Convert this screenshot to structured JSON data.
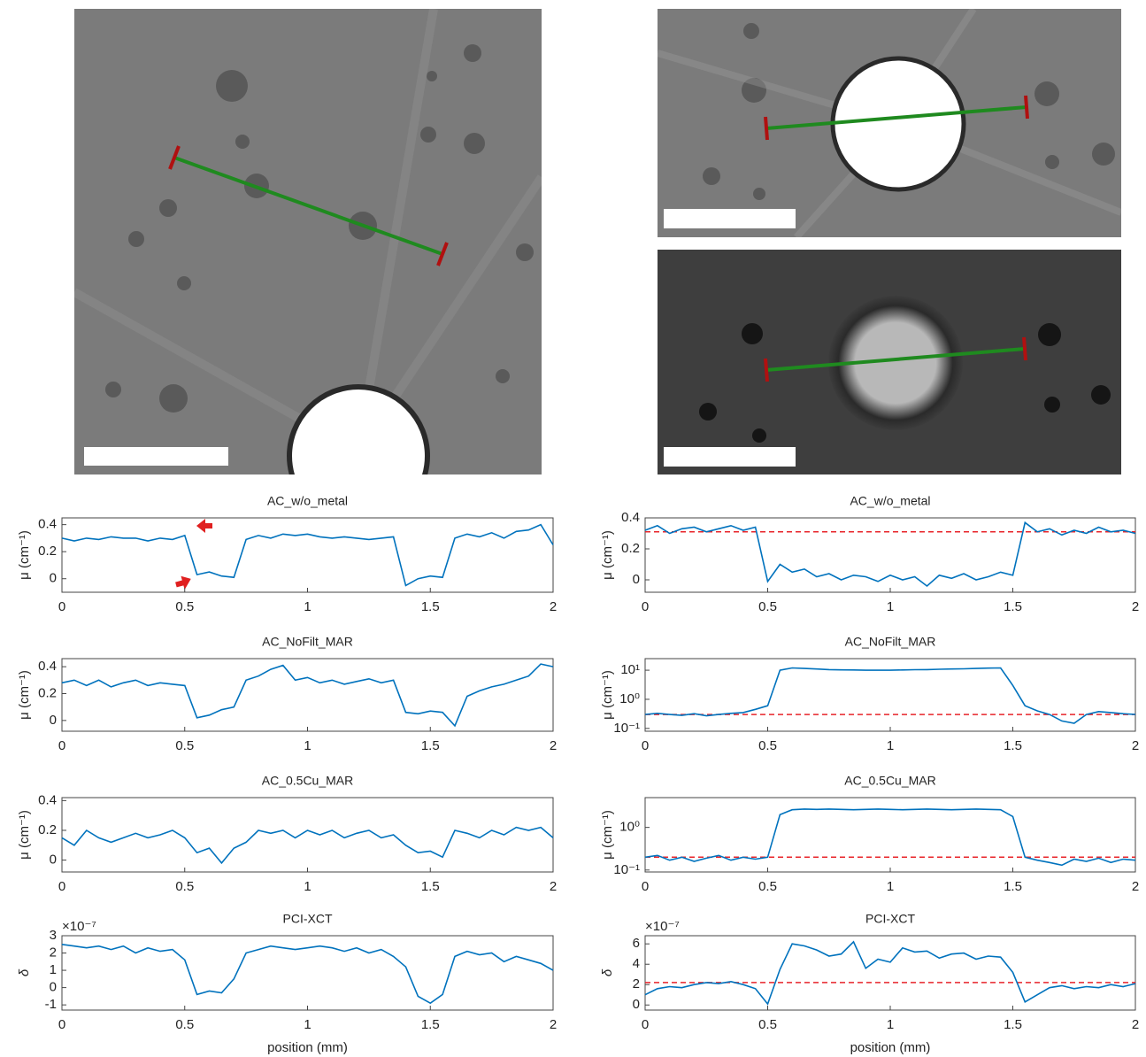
{
  "chart_data": [
    {
      "type": "line",
      "title": "AC_w/o_metal",
      "ylabel": "μ (cm⁻¹)",
      "xlim": [
        0,
        2
      ],
      "xticks": [
        0,
        0.5,
        1,
        1.5,
        2
      ],
      "ylim": [
        -0.1,
        0.45
      ],
      "yticks": [
        0,
        0.2,
        0.4
      ],
      "x": [
        0,
        0.05,
        0.1,
        0.15,
        0.2,
        0.25,
        0.3,
        0.35,
        0.4,
        0.45,
        0.5,
        0.55,
        0.6,
        0.65,
        0.7,
        0.75,
        0.8,
        0.85,
        0.9,
        0.95,
        1,
        1.05,
        1.1,
        1.15,
        1.2,
        1.25,
        1.3,
        1.35,
        1.4,
        1.45,
        1.5,
        1.55,
        1.6,
        1.65,
        1.7,
        1.75,
        1.8,
        1.85,
        1.9,
        1.95,
        2
      ],
      "series": [
        {
          "color": "#0072bd",
          "values": [
            0.3,
            0.28,
            0.3,
            0.29,
            0.31,
            0.3,
            0.3,
            0.28,
            0.3,
            0.29,
            0.32,
            0.03,
            0.05,
            0.02,
            0.01,
            0.29,
            0.32,
            0.3,
            0.33,
            0.32,
            0.33,
            0.31,
            0.3,
            0.31,
            0.3,
            0.29,
            0.3,
            0.31,
            -0.05,
            0.0,
            0.02,
            0.01,
            0.3,
            0.33,
            0.31,
            0.34,
            0.3,
            0.35,
            0.36,
            0.4,
            0.25
          ]
        }
      ]
    },
    {
      "type": "line",
      "title": "AC_w/o_metal",
      "ylabel": "μ (cm⁻¹)",
      "xlim": [
        0,
        2
      ],
      "xticks": [
        0,
        0.5,
        1,
        1.5,
        2
      ],
      "ylim": [
        -0.08,
        0.4
      ],
      "yticks": [
        0,
        0.2,
        0.4
      ],
      "x": [
        0,
        0.05,
        0.1,
        0.15,
        0.2,
        0.25,
        0.3,
        0.35,
        0.4,
        0.45,
        0.5,
        0.55,
        0.6,
        0.65,
        0.7,
        0.75,
        0.8,
        0.85,
        0.9,
        0.95,
        1,
        1.05,
        1.1,
        1.15,
        1.2,
        1.25,
        1.3,
        1.35,
        1.4,
        1.45,
        1.5,
        1.55,
        1.6,
        1.65,
        1.7,
        1.75,
        1.8,
        1.85,
        1.9,
        1.95,
        2
      ],
      "series": [
        {
          "color": "#0072bd",
          "values": [
            0.32,
            0.35,
            0.3,
            0.33,
            0.34,
            0.31,
            0.33,
            0.35,
            0.32,
            0.34,
            -0.01,
            0.1,
            0.05,
            0.07,
            0.02,
            0.04,
            0.0,
            0.03,
            0.02,
            -0.01,
            0.03,
            0.0,
            0.02,
            -0.04,
            0.03,
            0.01,
            0.04,
            0.0,
            0.02,
            0.05,
            0.03,
            0.37,
            0.31,
            0.33,
            0.29,
            0.32,
            0.3,
            0.34,
            0.31,
            0.32,
            0.3
          ]
        }
      ],
      "reference": {
        "value": 0.31,
        "color": "#e8242a"
      }
    },
    {
      "type": "line",
      "title": "AC_NoFilt_MAR",
      "ylabel": "μ (cm⁻¹)",
      "xlim": [
        0,
        2
      ],
      "xticks": [
        0,
        0.5,
        1,
        1.5,
        2
      ],
      "ylim": [
        -0.08,
        0.46
      ],
      "yticks": [
        0,
        0.2,
        0.4
      ],
      "x": [
        0,
        0.05,
        0.1,
        0.15,
        0.2,
        0.25,
        0.3,
        0.35,
        0.4,
        0.45,
        0.5,
        0.55,
        0.6,
        0.65,
        0.7,
        0.75,
        0.8,
        0.85,
        0.9,
        0.95,
        1,
        1.05,
        1.1,
        1.15,
        1.2,
        1.25,
        1.3,
        1.35,
        1.4,
        1.45,
        1.5,
        1.55,
        1.6,
        1.65,
        1.7,
        1.75,
        1.8,
        1.85,
        1.9,
        1.95,
        2
      ],
      "series": [
        {
          "color": "#0072bd",
          "values": [
            0.28,
            0.3,
            0.26,
            0.3,
            0.25,
            0.28,
            0.3,
            0.26,
            0.28,
            0.27,
            0.26,
            0.02,
            0.04,
            0.08,
            0.1,
            0.3,
            0.33,
            0.38,
            0.41,
            0.3,
            0.32,
            0.28,
            0.3,
            0.27,
            0.29,
            0.31,
            0.28,
            0.3,
            0.06,
            0.05,
            0.07,
            0.06,
            -0.04,
            0.18,
            0.22,
            0.25,
            0.27,
            0.3,
            0.33,
            0.42,
            0.4
          ]
        }
      ]
    },
    {
      "type": "line",
      "title": "AC_NoFilt_MAR",
      "ylabel": "μ (cm⁻¹)",
      "log_y": true,
      "xlim": [
        0,
        2
      ],
      "xticks": [
        0,
        0.5,
        1,
        1.5,
        2
      ],
      "ylim": [
        0.08,
        25
      ],
      "yticks": [
        {
          "value": 0.1,
          "label": "10⁻¹"
        },
        {
          "value": 1,
          "label": "10⁰"
        },
        {
          "value": 10,
          "label": "10¹"
        }
      ],
      "x": [
        0,
        0.05,
        0.1,
        0.15,
        0.2,
        0.25,
        0.3,
        0.35,
        0.4,
        0.45,
        0.5,
        0.55,
        0.6,
        0.65,
        0.7,
        0.75,
        0.8,
        0.85,
        0.9,
        0.95,
        1,
        1.05,
        1.1,
        1.15,
        1.2,
        1.25,
        1.3,
        1.35,
        1.4,
        1.45,
        1.5,
        1.55,
        1.6,
        1.65,
        1.7,
        1.75,
        1.8,
        1.85,
        1.9,
        1.95,
        2
      ],
      "series": [
        {
          "color": "#0072bd",
          "values": [
            0.3,
            0.33,
            0.3,
            0.28,
            0.32,
            0.27,
            0.3,
            0.33,
            0.35,
            0.45,
            0.6,
            10,
            12,
            11.5,
            11,
            10.5,
            10.3,
            10.2,
            10,
            10,
            10,
            10.2,
            10.4,
            10.5,
            10.8,
            11,
            11.2,
            11.5,
            11.8,
            12,
            3,
            0.6,
            0.4,
            0.3,
            0.18,
            0.15,
            0.3,
            0.38,
            0.35,
            0.32,
            0.3
          ]
        }
      ],
      "reference": {
        "value": 0.3,
        "color": "#e8242a"
      }
    },
    {
      "type": "line",
      "title": "AC_0.5Cu_MAR",
      "ylabel": "μ (cm⁻¹)",
      "xlim": [
        0,
        2
      ],
      "xticks": [
        0,
        0.5,
        1,
        1.5,
        2
      ],
      "ylim": [
        -0.08,
        0.42
      ],
      "yticks": [
        0,
        0.2,
        0.4
      ],
      "x": [
        0,
        0.05,
        0.1,
        0.15,
        0.2,
        0.25,
        0.3,
        0.35,
        0.4,
        0.45,
        0.5,
        0.55,
        0.6,
        0.65,
        0.7,
        0.75,
        0.8,
        0.85,
        0.9,
        0.95,
        1,
        1.05,
        1.1,
        1.15,
        1.2,
        1.25,
        1.3,
        1.35,
        1.4,
        1.45,
        1.5,
        1.55,
        1.6,
        1.65,
        1.7,
        1.75,
        1.8,
        1.85,
        1.9,
        1.95,
        2
      ],
      "series": [
        {
          "color": "#0072bd",
          "values": [
            0.15,
            0.1,
            0.2,
            0.15,
            0.12,
            0.15,
            0.18,
            0.15,
            0.17,
            0.2,
            0.15,
            0.05,
            0.08,
            -0.02,
            0.08,
            0.12,
            0.2,
            0.18,
            0.2,
            0.15,
            0.2,
            0.17,
            0.2,
            0.15,
            0.18,
            0.2,
            0.15,
            0.17,
            0.1,
            0.05,
            0.06,
            0.02,
            0.2,
            0.18,
            0.15,
            0.2,
            0.17,
            0.22,
            0.2,
            0.22,
            0.15
          ]
        }
      ]
    },
    {
      "type": "line",
      "title": "AC_0.5Cu_MAR",
      "ylabel": "μ (cm⁻¹)",
      "log_y": true,
      "xlim": [
        0,
        2
      ],
      "xticks": [
        0,
        0.5,
        1,
        1.5,
        2
      ],
      "ylim": [
        0.09,
        5
      ],
      "yticks": [
        {
          "value": 0.1,
          "label": "10⁻¹"
        },
        {
          "value": 1,
          "label": "10⁰"
        }
      ],
      "x": [
        0,
        0.05,
        0.1,
        0.15,
        0.2,
        0.25,
        0.3,
        0.35,
        0.4,
        0.45,
        0.5,
        0.55,
        0.6,
        0.65,
        0.7,
        0.75,
        0.8,
        0.85,
        0.9,
        0.95,
        1,
        1.05,
        1.1,
        1.15,
        1.2,
        1.25,
        1.3,
        1.35,
        1.4,
        1.45,
        1.5,
        1.55,
        1.6,
        1.65,
        1.7,
        1.75,
        1.8,
        1.85,
        1.9,
        1.95,
        2
      ],
      "series": [
        {
          "color": "#0072bd",
          "values": [
            0.2,
            0.22,
            0.17,
            0.2,
            0.16,
            0.19,
            0.22,
            0.17,
            0.2,
            0.18,
            0.2,
            2,
            2.6,
            2.7,
            2.65,
            2.7,
            2.65,
            2.6,
            2.65,
            2.7,
            2.65,
            2.6,
            2.65,
            2.7,
            2.65,
            2.6,
            2.65,
            2.7,
            2.65,
            2.6,
            1.8,
            0.2,
            0.17,
            0.15,
            0.13,
            0.18,
            0.16,
            0.19,
            0.15,
            0.18,
            0.17
          ]
        }
      ],
      "reference": {
        "value": 0.2,
        "color": "#e8242a"
      }
    },
    {
      "type": "line",
      "title": "PCI-XCT",
      "ylabel": "δ",
      "y_multiplier": "×10⁻⁷",
      "xlabel": "position (mm)",
      "xlim": [
        0,
        2
      ],
      "xticks": [
        0,
        0.5,
        1,
        1.5,
        2
      ],
      "ylim": [
        -1.3,
        3
      ],
      "yticks": [
        -1,
        0,
        1,
        2,
        3
      ],
      "x": [
        0,
        0.05,
        0.1,
        0.15,
        0.2,
        0.25,
        0.3,
        0.35,
        0.4,
        0.45,
        0.5,
        0.55,
        0.6,
        0.65,
        0.7,
        0.75,
        0.8,
        0.85,
        0.9,
        0.95,
        1,
        1.05,
        1.1,
        1.15,
        1.2,
        1.25,
        1.3,
        1.35,
        1.4,
        1.45,
        1.5,
        1.55,
        1.6,
        1.65,
        1.7,
        1.75,
        1.8,
        1.85,
        1.9,
        1.95,
        2
      ],
      "series": [
        {
          "color": "#0072bd",
          "values": [
            2.5,
            2.4,
            2.3,
            2.4,
            2.2,
            2.4,
            2.0,
            2.3,
            2.1,
            2.2,
            1.6,
            -0.4,
            -0.2,
            -0.3,
            0.5,
            2.0,
            2.2,
            2.4,
            2.3,
            2.2,
            2.3,
            2.4,
            2.3,
            2.1,
            2.3,
            2.0,
            2.2,
            1.8,
            1.2,
            -0.5,
            -0.9,
            -0.4,
            1.8,
            2.1,
            1.9,
            2.0,
            1.5,
            1.8,
            1.6,
            1.4,
            1.0
          ]
        }
      ]
    },
    {
      "type": "line",
      "title": "PCI-XCT",
      "ylabel": "δ",
      "y_multiplier": "×10⁻⁷",
      "xlabel": "position (mm)",
      "xlim": [
        0,
        2
      ],
      "xticks": [
        0,
        0.5,
        1,
        1.5,
        2
      ],
      "ylim": [
        -0.5,
        6.8
      ],
      "yticks": [
        0,
        2,
        4,
        6
      ],
      "x": [
        0,
        0.05,
        0.1,
        0.15,
        0.2,
        0.25,
        0.3,
        0.35,
        0.4,
        0.45,
        0.5,
        0.55,
        0.6,
        0.65,
        0.7,
        0.75,
        0.8,
        0.85,
        0.9,
        0.95,
        1,
        1.05,
        1.1,
        1.15,
        1.2,
        1.25,
        1.3,
        1.35,
        1.4,
        1.45,
        1.5,
        1.55,
        1.6,
        1.65,
        1.7,
        1.75,
        1.8,
        1.85,
        1.9,
        1.95,
        2
      ],
      "series": [
        {
          "color": "#0072bd",
          "values": [
            1.0,
            1.6,
            1.8,
            1.7,
            2.0,
            2.2,
            2.1,
            2.3,
            2.0,
            1.6,
            0.1,
            3.5,
            6.0,
            5.8,
            5.4,
            4.8,
            5.0,
            6.2,
            3.6,
            4.5,
            4.2,
            5.6,
            5.2,
            5.3,
            4.6,
            5.0,
            5.1,
            4.5,
            4.8,
            4.7,
            3.2,
            0.3,
            1.0,
            1.7,
            1.9,
            1.6,
            1.8,
            1.7,
            2.0,
            1.8,
            2.1
          ]
        }
      ],
      "reference": {
        "value": 2.2,
        "color": "#e8242a"
      }
    }
  ]
}
